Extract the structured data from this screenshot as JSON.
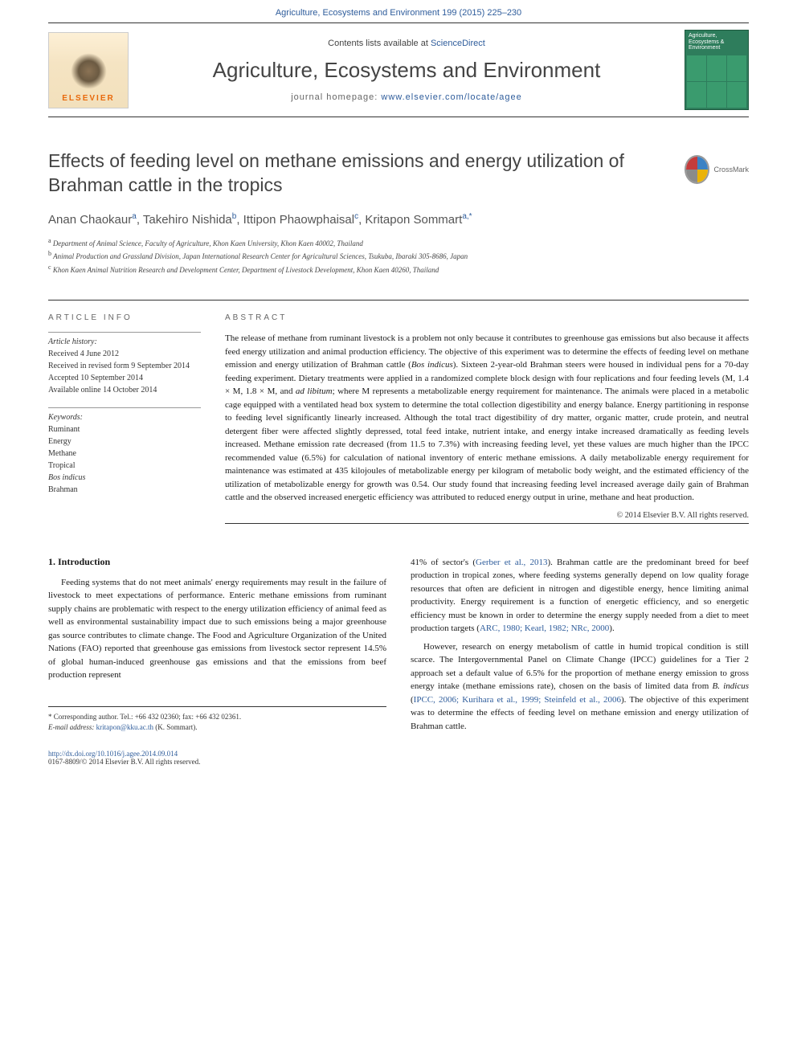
{
  "header": {
    "citation": "Agriculture, Ecosystems and Environment 199 (2015) 225–230",
    "contents_text": "Contents lists available at ",
    "contents_link": "ScienceDirect",
    "journal_title": "Agriculture, Ecosystems and Environment",
    "homepage_text": "journal homepage: ",
    "homepage_link": "www.elsevier.com/locate/agee",
    "elsevier_label": "ELSEVIER",
    "cover_title": "Agriculture, Ecosystems & Environment",
    "crossmark": "CrossMark"
  },
  "article": {
    "title": "Effects of feeding level on methane emissions and energy utilization of Brahman cattle in the tropics",
    "authors_html": "Anan Chaokaur<sup>a</sup>, Takehiro Nishida<sup>b</sup>, Ittipon Phaowphaisal<sup>c</sup>, Kritapon Sommart<sup>a,*</sup>",
    "affiliations": [
      {
        "sup": "a",
        "text": "Department of Animal Science, Faculty of Agriculture, Khon Kaen University, Khon Kaen 40002, Thailand"
      },
      {
        "sup": "b",
        "text": "Animal Production and Grassland Division, Japan International Research Center for Agricultural Sciences, Tsukuba, Ibaraki 305-8686, Japan"
      },
      {
        "sup": "c",
        "text": "Khon Kaen Animal Nutrition Research and Development Center, Department of Livestock Development, Khon Kaen 40260, Thailand"
      }
    ]
  },
  "info": {
    "heading": "ARTICLE INFO",
    "history_label": "Article history:",
    "history": [
      "Received 4 June 2012",
      "Received in revised form 9 September 2014",
      "Accepted 10 September 2014",
      "Available online 14 October 2014"
    ],
    "keywords_label": "Keywords:",
    "keywords": [
      "Ruminant",
      "Energy",
      "Methane",
      "Tropical",
      "Bos indicus",
      "Brahman"
    ]
  },
  "abstract": {
    "heading": "ABSTRACT",
    "text": "The release of methane from ruminant livestock is a problem not only because it contributes to greenhouse gas emissions but also because it affects feed energy utilization and animal production efficiency. The objective of this experiment was to determine the effects of feeding level on methane emission and energy utilization of Brahman cattle (Bos indicus). Sixteen 2-year-old Brahman steers were housed in individual pens for a 70-day feeding experiment. Dietary treatments were applied in a randomized complete block design with four replications and four feeding levels (M, 1.4 × M, 1.8 × M, and ad libitum; where M represents a metabolizable energy requirement for maintenance. The animals were placed in a metabolic cage equipped with a ventilated head box system to determine the total collection digestibility and energy balance. Energy partitioning in response to feeding level significantly linearly increased. Although the total tract digestibility of dry matter, organic matter, crude protein, and neutral detergent fiber were affected slightly depressed, total feed intake, nutrient intake, and energy intake increased dramatically as feeding levels increased. Methane emission rate decreased (from 11.5 to 7.3%) with increasing feeding level, yet these values are much higher than the IPCC recommended value (6.5%) for calculation of national inventory of enteric methane emissions. A daily metabolizable energy requirement for maintenance was estimated at 435 kilojoules of metabolizable energy per kilogram of metabolic body weight, and the estimated efficiency of the utilization of metabolizable energy for growth was 0.54. Our study found that increasing feeding level increased average daily gain of Brahman cattle and the observed increased energetic efficiency was attributed to reduced energy output in urine, methane and heat production.",
    "copyright": "© 2014 Elsevier B.V. All rights reserved."
  },
  "intro": {
    "heading": "1. Introduction",
    "p1": "Feeding systems that do not meet animals' energy requirements may result in the failure of livestock to meet expectations of performance. Enteric methane emissions from ruminant supply chains are problematic with respect to the energy utilization efficiency of animal feed as well as environmental sustainability impact due to such emissions being a major greenhouse gas source contributes to climate change. The Food and Agriculture Organization of the United Nations (FAO) reported that greenhouse gas emissions from livestock sector represent 14.5% of global human-induced greenhouse gas emissions and that the emissions from beef production represent",
    "p2_pre": "41% of sector's (",
    "p2_link1": "Gerber et al., 2013",
    "p2_mid1": "). Brahman cattle are the predominant breed for beef production in tropical zones, where feeding systems generally depend on low quality forage resources that often are deficient in nitrogen and digestible energy, hence limiting animal productivity. Energy requirement is a function of energetic efficiency, and so energetic efficiency must be known in order to determine the energy supply needed from a diet to meet production targets (",
    "p2_link2": "ARC, 1980; Kearl, 1982; NRc, 2000",
    "p2_end": ").",
    "p3_pre": "However, research on energy metabolism of cattle in humid tropical condition is still scarce. The Intergovernmental Panel on Climate Change (IPCC) guidelines for a Tier 2 approach set a default value of 6.5% for the proportion of methane energy emission to gross energy intake (methane emissions rate), chosen on the basis of limited data from ",
    "p3_em": "B. indicus",
    "p3_mid": " (",
    "p3_link": "IPCC, 2006; Kurihara et al., 1999; Steinfeld et al., 2006",
    "p3_end": "). The objective of this experiment was to determine the effects of feeding level on methane emission and energy utilization of Brahman cattle."
  },
  "corresponding": {
    "line1": "* Corresponding author. Tel.: +66 432 02360; fax: +66 432 02361.",
    "email_label": "E-mail address: ",
    "email": "kritapon@kku.ac.th",
    "email_suffix": " (K. Sommart)."
  },
  "footer": {
    "doi": "http://dx.doi.org/10.1016/j.agee.2014.09.014",
    "issn": "0167-8809/© 2014 Elsevier B.V. All rights reserved."
  },
  "colors": {
    "link": "#2e5c9b",
    "text": "#1a1a1a",
    "heading_gray": "#444",
    "elsevier_orange": "#e8690b",
    "cover_green": "#2e7d5c"
  },
  "typography": {
    "body_fontsize": 11,
    "title_fontsize": 23,
    "journal_title_fontsize": 26,
    "authors_fontsize": 15,
    "affil_fontsize": 9,
    "abstract_fontsize": 11
  }
}
